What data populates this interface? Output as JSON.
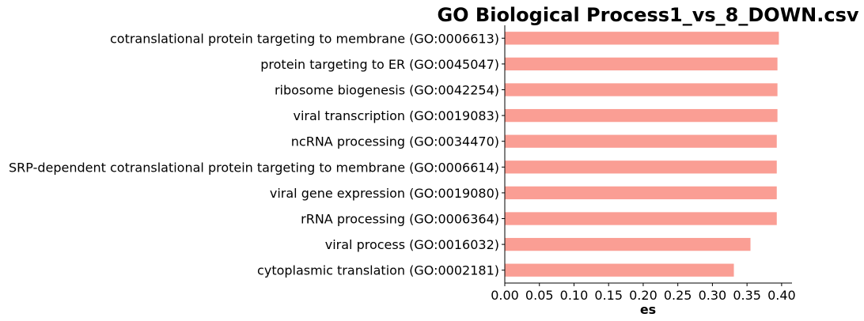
{
  "chart_data": {
    "type": "bar",
    "orientation": "horizontal",
    "title": "GO Biological Process1_vs_8_DOWN.csv",
    "xlabel": "es",
    "ylabel": "",
    "xlim": [
      0,
      0.415
    ],
    "xticks": [
      "0.00",
      "0.05",
      "0.10",
      "0.15",
      "0.20",
      "0.25",
      "0.30",
      "0.35",
      "0.40"
    ],
    "categories": [
      "cotranslational protein targeting to membrane (GO:0006613)",
      "protein targeting to ER (GO:0045047)",
      "ribosome biogenesis (GO:0042254)",
      "viral transcription (GO:0019083)",
      "ncRNA processing (GO:0034470)",
      "SRP-dependent cotranslational protein targeting to membrane (GO:0006614)",
      "viral gene expression (GO:0019080)",
      "rRNA processing (GO:0006364)",
      "viral process (GO:0016032)",
      "cytoplasmic translation (GO:0002181)"
    ],
    "values": [
      0.396,
      0.394,
      0.394,
      0.394,
      0.393,
      0.393,
      0.393,
      0.393,
      0.355,
      0.331
    ],
    "bar_color": "#fa9e94",
    "grid": false,
    "legend": "none"
  }
}
